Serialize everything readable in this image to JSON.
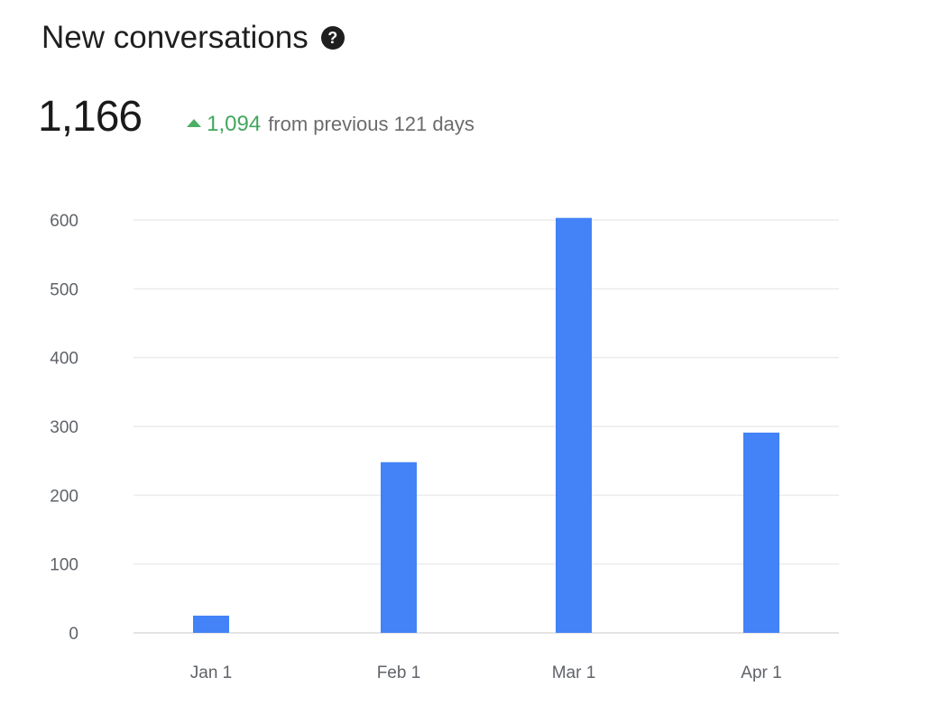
{
  "header": {
    "title": "New conversations",
    "help_icon": "question-circle-icon"
  },
  "kpi": {
    "value": "1,166",
    "delta_value": "1,094",
    "delta_text": "from previous 121 days",
    "delta_direction": "up",
    "delta_color": "#43a75e"
  },
  "chart_data": {
    "type": "bar",
    "categories": [
      "Jan 1",
      "Feb 1",
      "Mar 1",
      "Apr 1"
    ],
    "values": [
      25,
      248,
      603,
      291
    ],
    "ylim": [
      0,
      600
    ],
    "yticks": [
      0,
      100,
      200,
      300,
      400,
      500,
      600
    ],
    "grid": true,
    "bar_color": "#4382f7",
    "gridline_color": "#ececec"
  }
}
